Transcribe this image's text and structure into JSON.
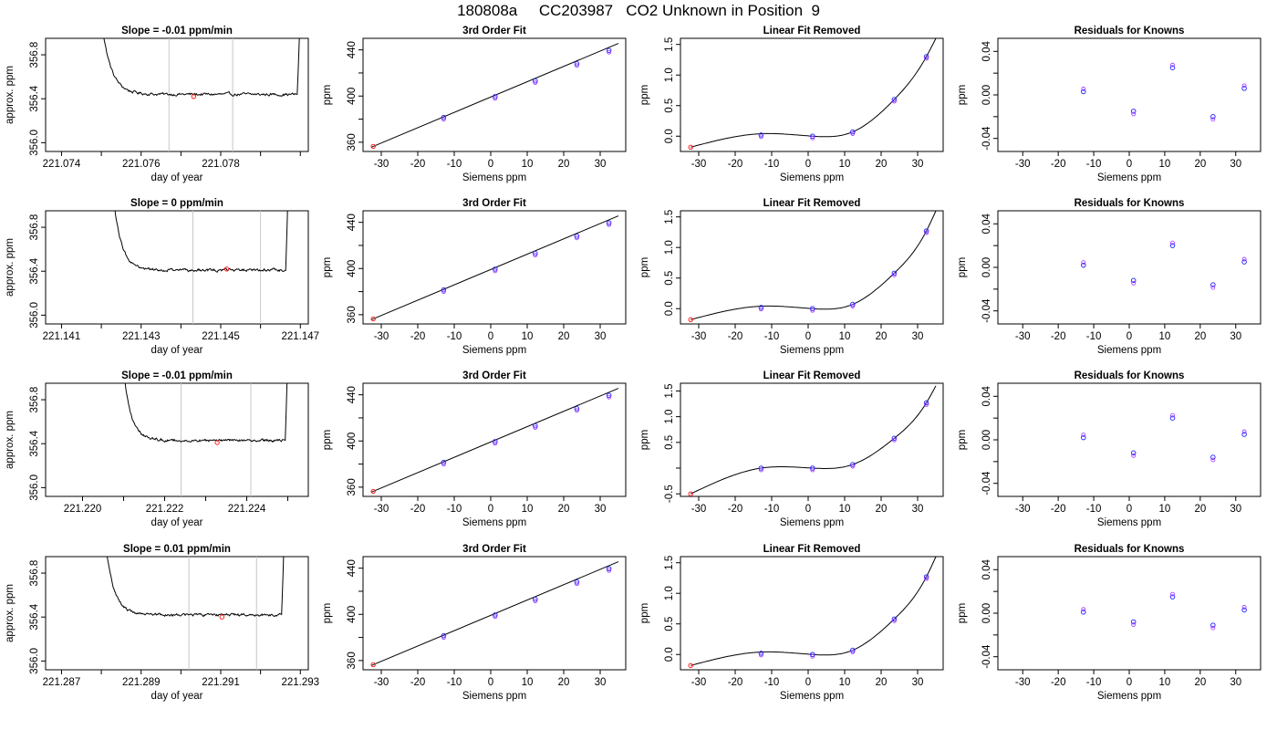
{
  "page": {
    "title": "180808a     CC203987   CO2 Unknown in Position  9"
  },
  "chart_data": [
    {
      "row": 0,
      "col": 0,
      "type": "line",
      "title": "Slope =  -0.01  ppm/min",
      "xlabel": "day of year",
      "ylabel": "approx. ppm",
      "xlim": [
        221.0736,
        221.0802
      ],
      "ylim": [
        355.92,
        356.95
      ],
      "xticks": [
        221.074,
        221.075,
        221.076,
        221.077,
        221.078,
        221.079,
        221.08
      ],
      "xtick_labels": [
        "221.074",
        "",
        "221.076",
        "",
        "221.078",
        "",
        ""
      ],
      "yticks": [
        356.0,
        356.4,
        356.8
      ],
      "ytick_labels": [
        "356.0",
        "356.4",
        "356.8"
      ],
      "window": [
        221.0767,
        221.0783
      ],
      "marker": {
        "x": 221.07732,
        "y": 356.42
      },
      "trace": {
        "x0": 221.0749,
        "x1": 221.08,
        "level": 356.44,
        "start": 357.5,
        "end": 357.2,
        "noise": 0.013,
        "slope": -0.015
      }
    },
    {
      "row": 0,
      "col": 1,
      "type": "scatter",
      "title": "3rd Order Fit",
      "xlabel": "Siemens ppm",
      "ylabel": "ppm",
      "xlim": [
        -35,
        37
      ],
      "ylim": [
        352,
        450
      ],
      "xticks": [
        -30,
        -20,
        -10,
        0,
        10,
        20,
        30
      ],
      "xtick_labels": [
        "-30",
        "-20",
        "-10",
        "0",
        "10",
        "20",
        "30"
      ],
      "yticks": [
        360,
        380,
        400,
        420,
        440
      ],
      "ytick_labels": [
        "360",
        "",
        "400",
        "",
        "440"
      ],
      "points": [
        [
          -12.9,
          381.5
        ],
        [
          1.2,
          399.5
        ],
        [
          12.2,
          413.1
        ],
        [
          23.6,
          428.0
        ],
        [
          32.4,
          439.5
        ]
      ],
      "unknown": [
        -32.2,
        356.4
      ],
      "line": {
        "x": [
          -32.8,
          35
        ],
        "y": [
          355.6,
          445.6
        ]
      }
    },
    {
      "row": 0,
      "col": 2,
      "type": "scatter",
      "title": "Linear Fit Removed",
      "xlabel": "Siemens ppm",
      "ylabel": "ppm",
      "xlim": [
        -35,
        37
      ],
      "ylim": [
        -0.25,
        1.6
      ],
      "xticks": [
        -30,
        -20,
        -10,
        0,
        10,
        20,
        30
      ],
      "xtick_labels": [
        "-30",
        "-20",
        "-10",
        "0",
        "10",
        "20",
        "30"
      ],
      "yticks": [
        0.0,
        0.5,
        1.0,
        1.5
      ],
      "ytick_labels": [
        "0.0",
        "0.5",
        "1.0",
        "1.5"
      ],
      "points": [
        [
          -12.9,
          0.02
        ],
        [
          1.2,
          0.0
        ],
        [
          12.2,
          0.07
        ],
        [
          23.6,
          0.6
        ],
        [
          32.4,
          1.3
        ]
      ],
      "unknown": [
        -32.2,
        -0.18
      ],
      "curve_anchor": [
        [
          -32.2,
          -0.18
        ],
        [
          -12.9,
          0.04
        ],
        [
          1.2,
          0.0
        ],
        [
          12.2,
          0.07
        ],
        [
          23.6,
          0.6
        ],
        [
          32.4,
          1.3
        ],
        [
          35,
          1.6
        ]
      ]
    },
    {
      "row": 0,
      "col": 3,
      "type": "scatter",
      "title": "Residuals for Knowns",
      "xlabel": "Siemens ppm",
      "ylabel": "ppm",
      "xlim": [
        -37,
        37
      ],
      "ylim": [
        -0.052,
        0.052
      ],
      "xticks": [
        -30,
        -20,
        -10,
        0,
        10,
        20,
        30
      ],
      "xtick_labels": [
        "-30",
        "-20",
        "-10",
        "0",
        "10",
        "20",
        "30"
      ],
      "yticks": [
        -0.04,
        -0.02,
        0.0,
        0.02,
        0.04
      ],
      "ytick_labels": [
        "-0.04",
        "",
        "0.00",
        "",
        "0.04"
      ],
      "points": [
        [
          -12.9,
          0.003
        ],
        [
          1.2,
          -0.015
        ],
        [
          12.2,
          0.025
        ],
        [
          23.6,
          -0.02
        ],
        [
          32.4,
          0.006
        ]
      ]
    },
    {
      "row": 1,
      "col": 0,
      "type": "line",
      "title": "Slope =  0  ppm/min",
      "xlabel": "day of year",
      "ylabel": "approx. ppm",
      "xlim": [
        221.1406,
        221.1472
      ],
      "ylim": [
        355.92,
        356.95
      ],
      "xticks": [
        221.141,
        221.142,
        221.143,
        221.144,
        221.145,
        221.146,
        221.147
      ],
      "xtick_labels": [
        "221.141",
        "",
        "221.143",
        "",
        "221.145",
        "",
        "221.147"
      ],
      "yticks": [
        356.0,
        356.4,
        356.8
      ],
      "ytick_labels": [
        "356.0",
        "356.4",
        "356.8"
      ],
      "window": [
        221.1443,
        221.146
      ],
      "marker": {
        "x": 221.14515,
        "y": 356.42
      },
      "trace": {
        "x0": 221.1422,
        "x1": 221.1467,
        "level": 356.41,
        "start": 357.5,
        "end": 357.2,
        "noise": 0.012,
        "slope": 0.0
      }
    },
    {
      "row": 1,
      "col": 1,
      "type": "scatter",
      "title": "3rd Order Fit",
      "xlabel": "Siemens ppm",
      "ylabel": "ppm",
      "xlim": [
        -35,
        37
      ],
      "ylim": [
        352,
        450
      ],
      "xticks": [
        -30,
        -20,
        -10,
        0,
        10,
        20,
        30
      ],
      "xtick_labels": [
        "-30",
        "-20",
        "-10",
        "0",
        "10",
        "20",
        "30"
      ],
      "yticks": [
        360,
        380,
        400,
        420,
        440
      ],
      "ytick_labels": [
        "360",
        "",
        "400",
        "",
        "440"
      ],
      "points": [
        [
          -12.9,
          381.5
        ],
        [
          1.2,
          399.5
        ],
        [
          12.2,
          413.1
        ],
        [
          23.6,
          428.0
        ],
        [
          32.4,
          439.5
        ]
      ],
      "unknown": [
        -32.2,
        356.4
      ],
      "line": {
        "x": [
          -32.8,
          35
        ],
        "y": [
          355.6,
          445.6
        ]
      }
    },
    {
      "row": 1,
      "col": 2,
      "type": "scatter",
      "title": "Linear Fit Removed",
      "xlabel": "Siemens ppm",
      "ylabel": "ppm",
      "xlim": [
        -35,
        37
      ],
      "ylim": [
        -0.25,
        1.6
      ],
      "xticks": [
        -30,
        -20,
        -10,
        0,
        10,
        20,
        30
      ],
      "xtick_labels": [
        "-30",
        "-20",
        "-10",
        "0",
        "10",
        "20",
        "30"
      ],
      "yticks": [
        0.0,
        0.5,
        1.0,
        1.5
      ],
      "ytick_labels": [
        "0.0",
        "0.5",
        "1.0",
        "1.5"
      ],
      "points": [
        [
          -12.9,
          0.02
        ],
        [
          1.2,
          0.0
        ],
        [
          12.2,
          0.07
        ],
        [
          23.6,
          0.58
        ],
        [
          32.4,
          1.27
        ]
      ],
      "unknown": [
        -32.2,
        -0.18
      ],
      "curve_anchor": [
        [
          -32.2,
          -0.18
        ],
        [
          -12.9,
          0.04
        ],
        [
          1.2,
          0.0
        ],
        [
          12.2,
          0.07
        ],
        [
          23.6,
          0.58
        ],
        [
          32.4,
          1.27
        ],
        [
          35,
          1.6
        ]
      ]
    },
    {
      "row": 1,
      "col": 3,
      "type": "scatter",
      "title": "Residuals for Knowns",
      "xlabel": "Siemens ppm",
      "ylabel": "ppm",
      "xlim": [
        -37,
        37
      ],
      "ylim": [
        -0.052,
        0.052
      ],
      "xticks": [
        -30,
        -20,
        -10,
        0,
        10,
        20,
        30
      ],
      "xtick_labels": [
        "-30",
        "-20",
        "-10",
        "0",
        "10",
        "20",
        "30"
      ],
      "yticks": [
        -0.04,
        -0.02,
        0.0,
        0.02,
        0.04
      ],
      "ytick_labels": [
        "-0.04",
        "",
        "0.00",
        "",
        "0.04"
      ],
      "points": [
        [
          -12.9,
          0.002
        ],
        [
          1.2,
          -0.012
        ],
        [
          12.2,
          0.02
        ],
        [
          23.6,
          -0.016
        ],
        [
          32.4,
          0.005
        ]
      ]
    },
    {
      "row": 2,
      "col": 0,
      "type": "line",
      "title": "Slope =  -0.01  ppm/min",
      "xlabel": "day of year",
      "ylabel": "approx. ppm",
      "xlim": [
        221.2191,
        221.2255
      ],
      "ylim": [
        355.92,
        356.95
      ],
      "xticks": [
        221.22,
        221.221,
        221.222,
        221.223,
        221.224,
        221.225
      ],
      "xtick_labels": [
        "221.220",
        "",
        "221.222",
        "",
        "221.224",
        ""
      ],
      "yticks": [
        356.0,
        356.4,
        356.8
      ],
      "ytick_labels": [
        "356.0",
        "356.4",
        "356.8"
      ],
      "window": [
        221.2224,
        221.2241
      ],
      "marker": {
        "x": 221.22328,
        "y": 356.41
      },
      "trace": {
        "x0": 221.2209,
        "x1": 221.225,
        "level": 356.43,
        "start": 357.5,
        "end": 357.2,
        "noise": 0.012,
        "slope": -0.015
      }
    },
    {
      "row": 2,
      "col": 1,
      "type": "scatter",
      "title": "3rd Order Fit",
      "xlabel": "Siemens ppm",
      "ylabel": "ppm",
      "xlim": [
        -35,
        37
      ],
      "ylim": [
        352,
        450
      ],
      "xticks": [
        -30,
        -20,
        -10,
        0,
        10,
        20,
        30
      ],
      "xtick_labels": [
        "-30",
        "-20",
        "-10",
        "0",
        "10",
        "20",
        "30"
      ],
      "yticks": [
        360,
        380,
        400,
        420,
        440
      ],
      "ytick_labels": [
        "360",
        "",
        "400",
        "",
        "440"
      ],
      "points": [
        [
          -12.9,
          381.5
        ],
        [
          1.2,
          399.5
        ],
        [
          12.2,
          413.1
        ],
        [
          23.6,
          428.0
        ],
        [
          32.4,
          439.5
        ]
      ],
      "unknown": [
        -32.2,
        356.4
      ],
      "line": {
        "x": [
          -32.8,
          35
        ],
        "y": [
          355.6,
          445.6
        ]
      }
    },
    {
      "row": 2,
      "col": 2,
      "type": "scatter",
      "title": "Linear Fit Removed",
      "xlabel": "Siemens ppm",
      "ylabel": "ppm",
      "xlim": [
        -35,
        37
      ],
      "ylim": [
        -0.55,
        1.65
      ],
      "xticks": [
        -30,
        -20,
        -10,
        0,
        10,
        20,
        30
      ],
      "xtick_labels": [
        "-30",
        "-20",
        "-10",
        "0",
        "10",
        "20",
        "30"
      ],
      "yticks": [
        -0.5,
        0.0,
        0.5,
        1.0,
        1.5
      ],
      "ytick_labels": [
        "-0.5",
        "",
        "0.5",
        "1.0",
        "1.5"
      ],
      "points": [
        [
          -12.9,
          0.0
        ],
        [
          1.2,
          0.0
        ],
        [
          12.2,
          0.07
        ],
        [
          23.6,
          0.58
        ],
        [
          32.4,
          1.27
        ]
      ],
      "unknown": [
        -32.2,
        -0.5
      ],
      "curve_anchor": [
        [
          -32.2,
          -0.5
        ],
        [
          -12.9,
          0.0
        ],
        [
          1.2,
          0.0
        ],
        [
          12.2,
          0.07
        ],
        [
          23.6,
          0.58
        ],
        [
          32.4,
          1.27
        ],
        [
          35,
          1.6
        ]
      ]
    },
    {
      "row": 2,
      "col": 3,
      "type": "scatter",
      "title": "Residuals for Knowns",
      "xlabel": "Siemens ppm",
      "ylabel": "ppm",
      "xlim": [
        -37,
        37
      ],
      "ylim": [
        -0.052,
        0.052
      ],
      "xticks": [
        -30,
        -20,
        -10,
        0,
        10,
        20,
        30
      ],
      "xtick_labels": [
        "-30",
        "-20",
        "-10",
        "0",
        "10",
        "20",
        "30"
      ],
      "yticks": [
        -0.04,
        -0.02,
        0.0,
        0.02,
        0.04
      ],
      "ytick_labels": [
        "-0.04",
        "",
        "0.00",
        "",
        "0.04"
      ],
      "points": [
        [
          -12.9,
          0.002
        ],
        [
          1.2,
          -0.012
        ],
        [
          12.2,
          0.02
        ],
        [
          23.6,
          -0.016
        ],
        [
          32.4,
          0.005
        ]
      ]
    },
    {
      "row": 3,
      "col": 0,
      "type": "line",
      "title": "Slope =  0.01  ppm/min",
      "xlabel": "day of year",
      "ylabel": "approx. ppm",
      "xlim": [
        221.2866,
        221.2932
      ],
      "ylim": [
        355.92,
        356.95
      ],
      "xticks": [
        221.287,
        221.288,
        221.289,
        221.29,
        221.291,
        221.292,
        221.293
      ],
      "xtick_labels": [
        "221.287",
        "",
        "221.289",
        "",
        "221.291",
        "",
        "221.293"
      ],
      "yticks": [
        356.0,
        356.4,
        356.8
      ],
      "ytick_labels": [
        "356.0",
        "356.4",
        "356.8"
      ],
      "window": [
        221.2902,
        221.2919
      ],
      "marker": {
        "x": 221.29103,
        "y": 356.4
      },
      "trace": {
        "x0": 221.288,
        "x1": 221.2926,
        "level": 356.42,
        "start": 357.5,
        "end": 357.2,
        "noise": 0.012,
        "slope": 0.005
      }
    },
    {
      "row": 3,
      "col": 1,
      "type": "scatter",
      "title": "3rd Order Fit",
      "xlabel": "Siemens ppm",
      "ylabel": "ppm",
      "xlim": [
        -35,
        37
      ],
      "ylim": [
        352,
        450
      ],
      "xticks": [
        -30,
        -20,
        -10,
        0,
        10,
        20,
        30
      ],
      "xtick_labels": [
        "-30",
        "-20",
        "-10",
        "0",
        "10",
        "20",
        "30"
      ],
      "yticks": [
        360,
        380,
        400,
        420,
        440
      ],
      "ytick_labels": [
        "360",
        "",
        "400",
        "",
        "440"
      ],
      "points": [
        [
          -12.9,
          381.5
        ],
        [
          1.2,
          399.5
        ],
        [
          12.2,
          413.1
        ],
        [
          23.6,
          428.0
        ],
        [
          32.4,
          439.5
        ]
      ],
      "unknown": [
        -32.2,
        356.4
      ],
      "line": {
        "x": [
          -32.8,
          35
        ],
        "y": [
          355.6,
          445.6
        ]
      }
    },
    {
      "row": 3,
      "col": 2,
      "type": "scatter",
      "title": "Linear Fit Removed",
      "xlabel": "Siemens ppm",
      "ylabel": "ppm",
      "xlim": [
        -35,
        37
      ],
      "ylim": [
        -0.25,
        1.6
      ],
      "xticks": [
        -30,
        -20,
        -10,
        0,
        10,
        20,
        30
      ],
      "xtick_labels": [
        "-30",
        "-20",
        "-10",
        "0",
        "10",
        "20",
        "30"
      ],
      "yticks": [
        0.0,
        0.5,
        1.0,
        1.5
      ],
      "ytick_labels": [
        "0.0",
        "0.5",
        "1.0",
        "1.5"
      ],
      "points": [
        [
          -12.9,
          0.02
        ],
        [
          1.2,
          0.0
        ],
        [
          12.2,
          0.07
        ],
        [
          23.6,
          0.58
        ],
        [
          32.4,
          1.27
        ]
      ],
      "unknown": [
        -32.2,
        -0.18
      ],
      "curve_anchor": [
        [
          -32.2,
          -0.18
        ],
        [
          -12.9,
          0.04
        ],
        [
          1.2,
          0.0
        ],
        [
          12.2,
          0.07
        ],
        [
          23.6,
          0.58
        ],
        [
          32.4,
          1.27
        ],
        [
          35,
          1.6
        ]
      ]
    },
    {
      "row": 3,
      "col": 3,
      "type": "scatter",
      "title": "Residuals for Knowns",
      "xlabel": "Siemens ppm",
      "ylabel": "ppm",
      "xlim": [
        -37,
        37
      ],
      "ylim": [
        -0.052,
        0.052
      ],
      "xticks": [
        -30,
        -20,
        -10,
        0,
        10,
        20,
        30
      ],
      "xtick_labels": [
        "-30",
        "-20",
        "-10",
        "0",
        "10",
        "20",
        "30"
      ],
      "yticks": [
        -0.04,
        -0.02,
        0.0,
        0.02,
        0.04
      ],
      "ytick_labels": [
        "-0.04",
        "",
        "0.00",
        "",
        "0.04"
      ],
      "points": [
        [
          -12.9,
          0.001
        ],
        [
          1.2,
          -0.008
        ],
        [
          12.2,
          0.015
        ],
        [
          23.6,
          -0.011
        ],
        [
          32.4,
          0.003
        ]
      ]
    }
  ],
  "colors": {
    "known_point": "#3030ff",
    "known_point_alt": "#9b30ff",
    "unknown_point": "#ff2020",
    "fit_line": "#000000",
    "window_line": "#c8c8c8",
    "frame": "#000000"
  }
}
